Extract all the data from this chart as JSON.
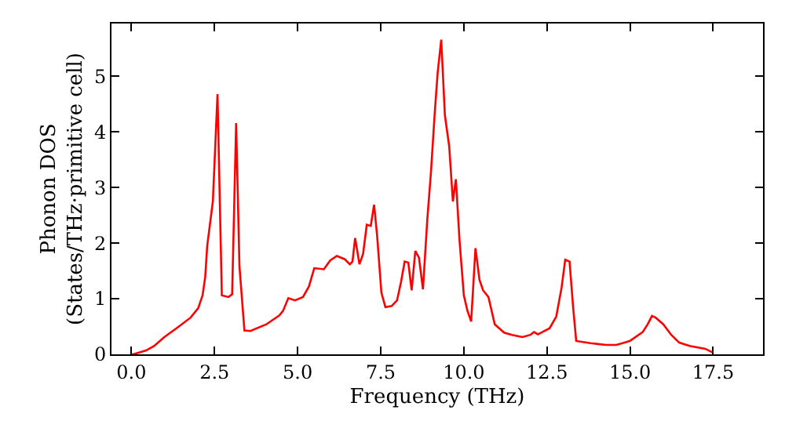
{
  "chart_data": {
    "type": "line",
    "xlabel": "Frequency (THz)",
    "ylabel": "Phonon DOS\n(States/THz·primitive cell)",
    "xlim": [
      -0.6,
      19.0
    ],
    "ylim": [
      0,
      5.95
    ],
    "xticks": [
      {
        "value": 0,
        "label": "0.0"
      },
      {
        "value": 2.5,
        "label": "2.5"
      },
      {
        "value": 5,
        "label": "5.0"
      },
      {
        "value": 7.5,
        "label": "7.5"
      },
      {
        "value": 10,
        "label": "10.0"
      },
      {
        "value": 12.5,
        "label": "12.5"
      },
      {
        "value": 15,
        "label": "15.0"
      },
      {
        "value": 17.5,
        "label": "17.5"
      }
    ],
    "yticks": [
      0,
      1,
      2,
      3,
      4,
      5
    ],
    "legend": false,
    "marker": "none",
    "line_style": "solid",
    "x": [
      0,
      0.05,
      0.44,
      0.68,
      0.99,
      1.38,
      1.78,
      2.01,
      2.14,
      2.22,
      2.28,
      2.45,
      2.59,
      2.72,
      2.92,
      3.03,
      3.15,
      3.25,
      3.4,
      3.58,
      4.06,
      4.45,
      4.56,
      4.72,
      4.92,
      5.16,
      5.34,
      5.5,
      5.79,
      5.98,
      6.18,
      6.42,
      6.57,
      6.65,
      6.73,
      6.86,
      6.97,
      7.08,
      7.2,
      7.3,
      7.39,
      7.52,
      7.64,
      7.83,
      7.99,
      8.11,
      8.22,
      8.33,
      8.43,
      8.54,
      8.65,
      8.77,
      8.9,
      9.01,
      9.12,
      9.21,
      9.32,
      9.43,
      9.56,
      9.67,
      9.76,
      9.87,
      10.0,
      10.11,
      10.22,
      10.35,
      10.47,
      10.58,
      10.74,
      10.93,
      11.21,
      11.45,
      11.76,
      12.0,
      12.11,
      12.23,
      12.36,
      12.58,
      12.78,
      12.94,
      13.05,
      13.18,
      13.29,
      13.38,
      13.81,
      14.28,
      14.59,
      14.99,
      15.38,
      15.53,
      15.66,
      15.77,
      16.0,
      16.24,
      16.48,
      16.79,
      17.26,
      17.5
    ],
    "series": [
      {
        "color": "#ff0000",
        "values": [
          0,
          0,
          0.07,
          0.15,
          0.31,
          0.48,
          0.66,
          0.83,
          1.06,
          1.39,
          1.95,
          2.75,
          4.68,
          1.06,
          1.03,
          1.08,
          4.16,
          1.58,
          0.43,
          0.42,
          0.54,
          0.7,
          0.78,
          1.01,
          0.97,
          1.03,
          1.22,
          1.55,
          1.53,
          1.69,
          1.77,
          1.71,
          1.62,
          1.67,
          2.09,
          1.62,
          1.81,
          2.33,
          2.31,
          2.69,
          2.14,
          1.11,
          0.85,
          0.87,
          0.97,
          1.3,
          1.67,
          1.65,
          1.15,
          1.86,
          1.74,
          1.17,
          2.42,
          3.27,
          4.3,
          5.05,
          5.66,
          4.3,
          3.74,
          2.75,
          3.15,
          2.05,
          1.06,
          0.78,
          0.59,
          1.91,
          1.34,
          1.15,
          1.03,
          0.54,
          0.39,
          0.35,
          0.31,
          0.35,
          0.4,
          0.36,
          0.4,
          0.47,
          0.68,
          1.2,
          1.7,
          1.67,
          0.83,
          0.24,
          0.2,
          0.17,
          0.17,
          0.24,
          0.4,
          0.54,
          0.69,
          0.66,
          0.54,
          0.35,
          0.21,
          0.15,
          0.1,
          0.03
        ]
      }
    ]
  }
}
